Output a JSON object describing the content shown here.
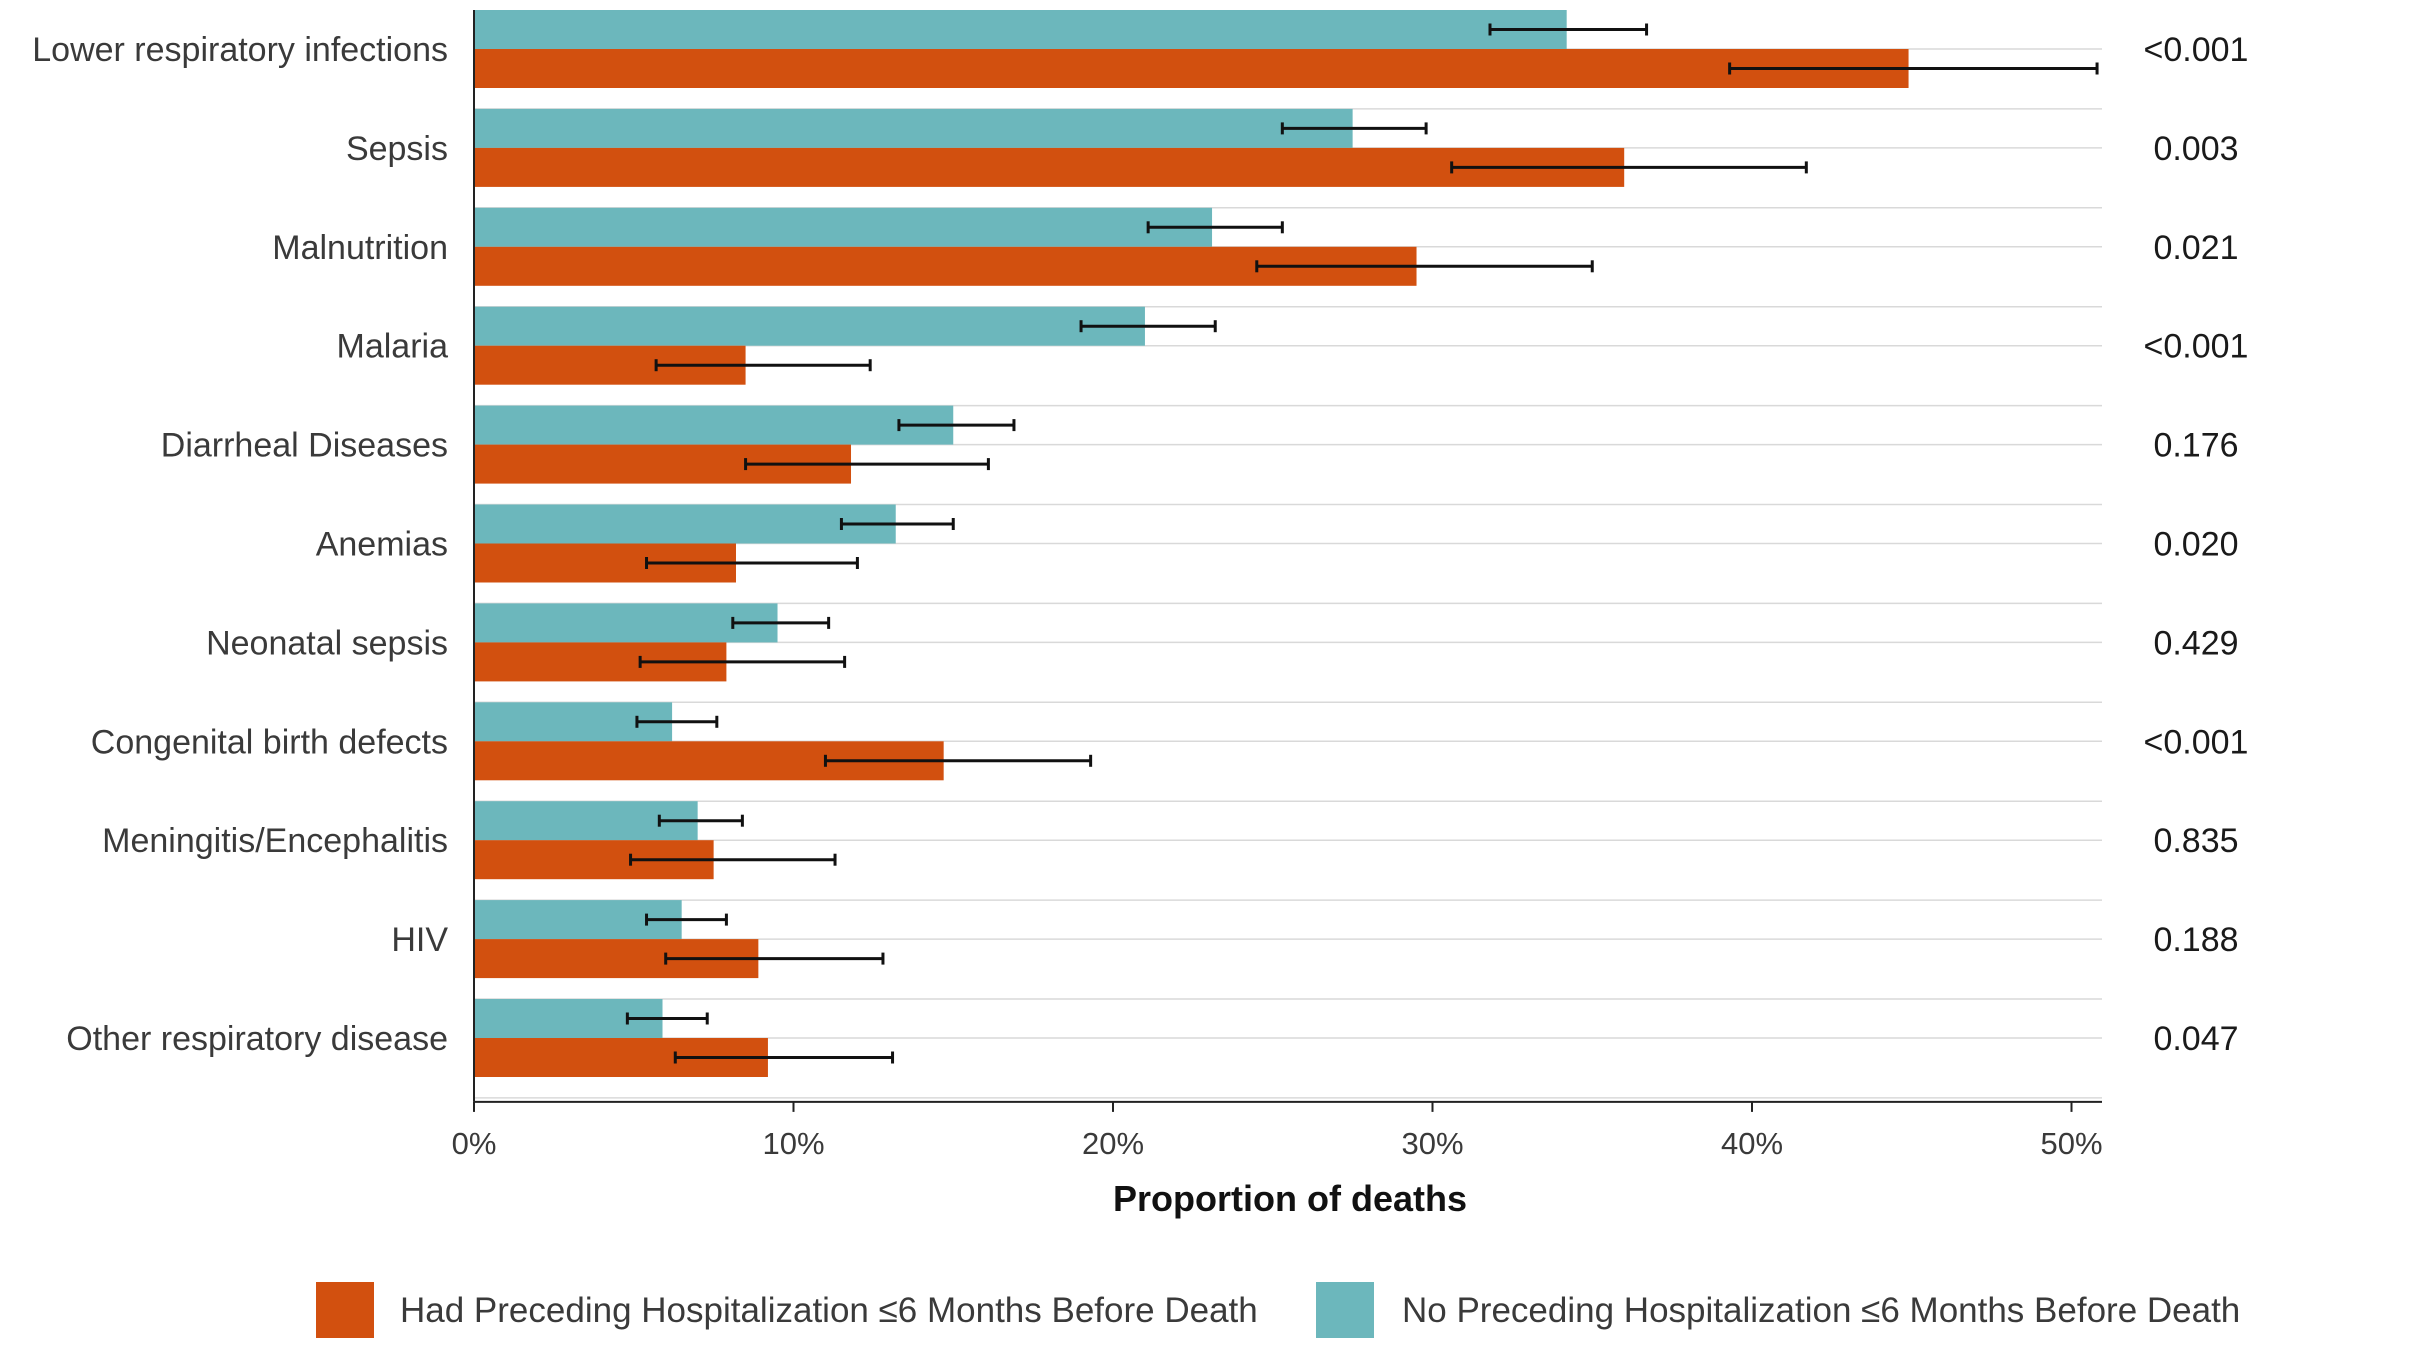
{
  "chart_data": {
    "type": "bar",
    "orientation": "horizontal",
    "categories": [
      "Lower respiratory infections",
      "Sepsis",
      "Malnutrition",
      "Malaria",
      "Diarrheal Diseases",
      "Anemias",
      "Neonatal sepsis",
      "Congenital birth defects",
      "Meningitis/Encephalitis",
      "HIV",
      "Other respiratory disease"
    ],
    "series": [
      {
        "name": "No Preceding Hospitalization ≤6 Months Before Death",
        "color": "#6cb7bc",
        "values": [
          34.2,
          27.5,
          23.1,
          21.0,
          15.0,
          13.2,
          9.5,
          6.2,
          7.0,
          6.5,
          5.9
        ],
        "ci_lower": [
          31.8,
          25.3,
          21.1,
          19.0,
          13.3,
          11.5,
          8.1,
          5.1,
          5.8,
          5.4,
          4.8
        ],
        "ci_upper": [
          36.7,
          29.8,
          25.3,
          23.2,
          16.9,
          15.0,
          11.1,
          7.6,
          8.4,
          7.9,
          7.3
        ]
      },
      {
        "name": "Had Preceding Hospitalization ≤6 Months Before Death",
        "color": "#d2500f",
        "values": [
          44.9,
          36.0,
          29.5,
          8.5,
          11.8,
          8.2,
          7.9,
          14.7,
          7.5,
          8.9,
          9.2
        ],
        "ci_lower": [
          39.3,
          30.6,
          24.5,
          5.7,
          8.5,
          5.4,
          5.2,
          11.0,
          4.9,
          6.0,
          6.3
        ],
        "ci_upper": [
          50.8,
          41.7,
          35.0,
          12.4,
          16.1,
          12.0,
          11.6,
          19.3,
          11.3,
          12.8,
          13.1
        ]
      }
    ],
    "p_values": [
      "<0.001",
      "0.003",
      "0.021",
      "<0.001",
      "0.176",
      "0.020",
      "0.429",
      "<0.001",
      "0.835",
      "0.188",
      "0.047"
    ],
    "xlim": [
      0,
      50
    ],
    "x_ticks": [
      "0%",
      "10%",
      "20%",
      "30%",
      "40%",
      "50%"
    ],
    "xlabel": "Proportion of deaths",
    "ylabel": "",
    "title": "",
    "grid": "horizontal",
    "legend_position": "bottom",
    "legend_order": [
      "Had Preceding Hospitalization ≤6 Months Before Death",
      "No Preceding Hospitalization ≤6 Months Before Death"
    ]
  }
}
